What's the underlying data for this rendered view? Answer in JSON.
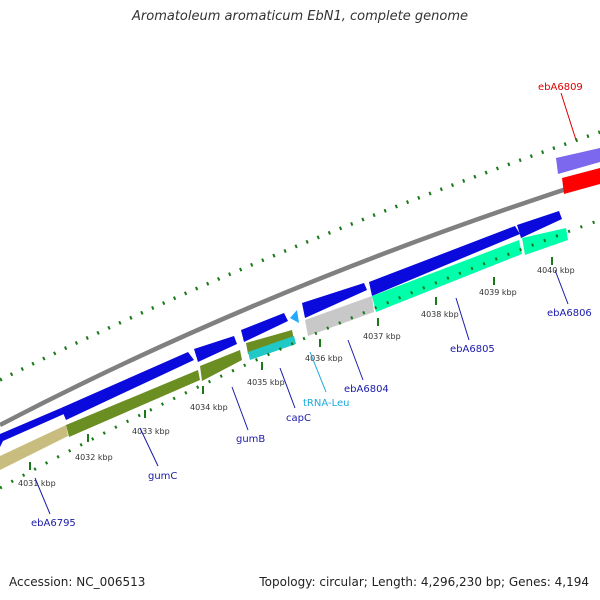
{
  "title": "Aromatoleum aromaticum EbN1, complete genome",
  "footer": {
    "accession": "Accession: NC_006513",
    "topology": "Topology: circular; Length: 4,296,230 bp; Genes: 4,194"
  },
  "colors": {
    "forward_gene": "#0a0adc",
    "reverse_gene": "#6b8e23",
    "reverse_gene_pale": "#c8bd7e",
    "ncrna": "#00ffaa",
    "grey_feature": "#c8c8c8",
    "cyan_feature": "#20c8c8",
    "trna": "#22aaff",
    "highlight": "#ff0000",
    "purple_feature": "#7b68ee",
    "backbone": "#808080",
    "tick": "#1a7a1a",
    "gene_label": "#1a1aaa",
    "trna_label": "#1aaadd",
    "highlight_label": "#dd0000"
  },
  "kbp_labels": [
    "4031 kbp",
    "4032 kbp",
    "4033 kbp",
    "4034 kbp",
    "4035 kbp",
    "4036 kbp",
    "4037 kbp",
    "4038 kbp",
    "4039 kbp",
    "4040 kbp"
  ],
  "gene_labels": [
    {
      "id": "ebA6795",
      "text": "ebA6795",
      "kind": "gene"
    },
    {
      "id": "gumC",
      "text": "gumC",
      "kind": "gene"
    },
    {
      "id": "gumB",
      "text": "gumB",
      "kind": "gene"
    },
    {
      "id": "capC",
      "text": "capC",
      "kind": "gene"
    },
    {
      "id": "trna-leu",
      "text": "tRNA-Leu",
      "kind": "trna"
    },
    {
      "id": "ebA6804",
      "text": "ebA6804",
      "kind": "gene"
    },
    {
      "id": "ebA6805",
      "text": "ebA6805",
      "kind": "gene"
    },
    {
      "id": "ebA6806",
      "text": "ebA6806",
      "kind": "gene"
    },
    {
      "id": "ebA6809",
      "text": "ebA6809",
      "kind": "highlight"
    }
  ]
}
